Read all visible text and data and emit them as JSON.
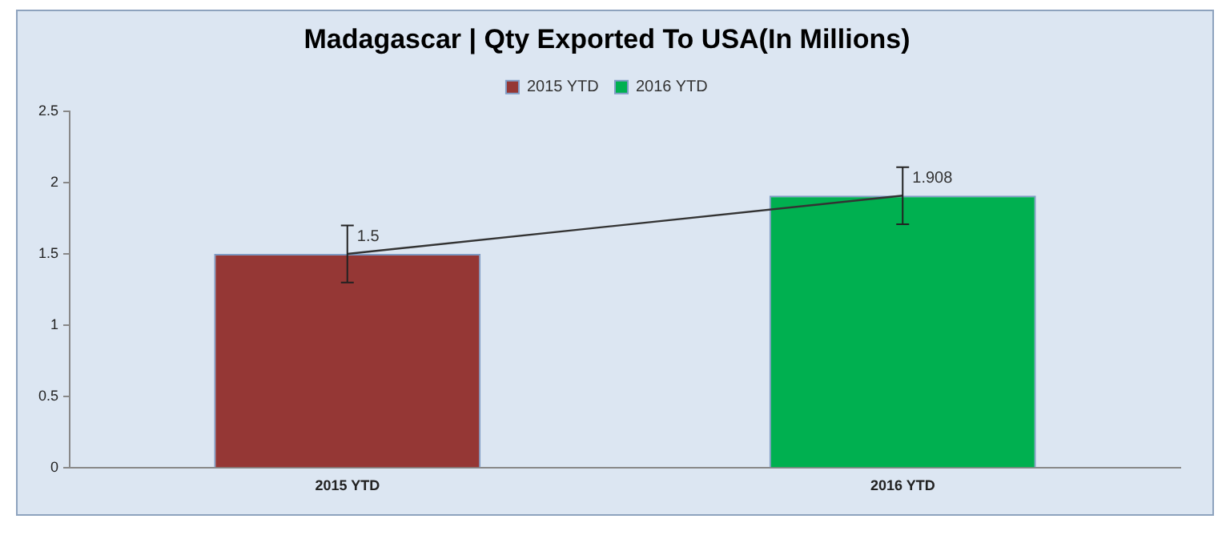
{
  "chart_data": {
    "type": "bar",
    "title": "Madagascar | Qty Exported To USA(In Millions)",
    "categories": [
      "2015 YTD",
      "2016 YTD"
    ],
    "series": [
      {
        "name": "2015 YTD",
        "color": "#953735",
        "values": [
          1.5,
          null
        ]
      },
      {
        "name": "2016 YTD",
        "color": "#00b050",
        "values": [
          null,
          1.908
        ]
      },
      {
        "type": "line",
        "color": "#333333",
        "values": [
          1.5,
          1.908
        ],
        "errors": [
          0.2,
          0.2
        ],
        "value_labels": [
          "1.5",
          "1.908"
        ]
      }
    ],
    "ylim": [
      0,
      2.5
    ],
    "yticks": [
      0,
      0.5,
      1,
      1.5,
      2,
      2.5
    ],
    "grid": false,
    "legend": "top",
    "marker": "none"
  }
}
